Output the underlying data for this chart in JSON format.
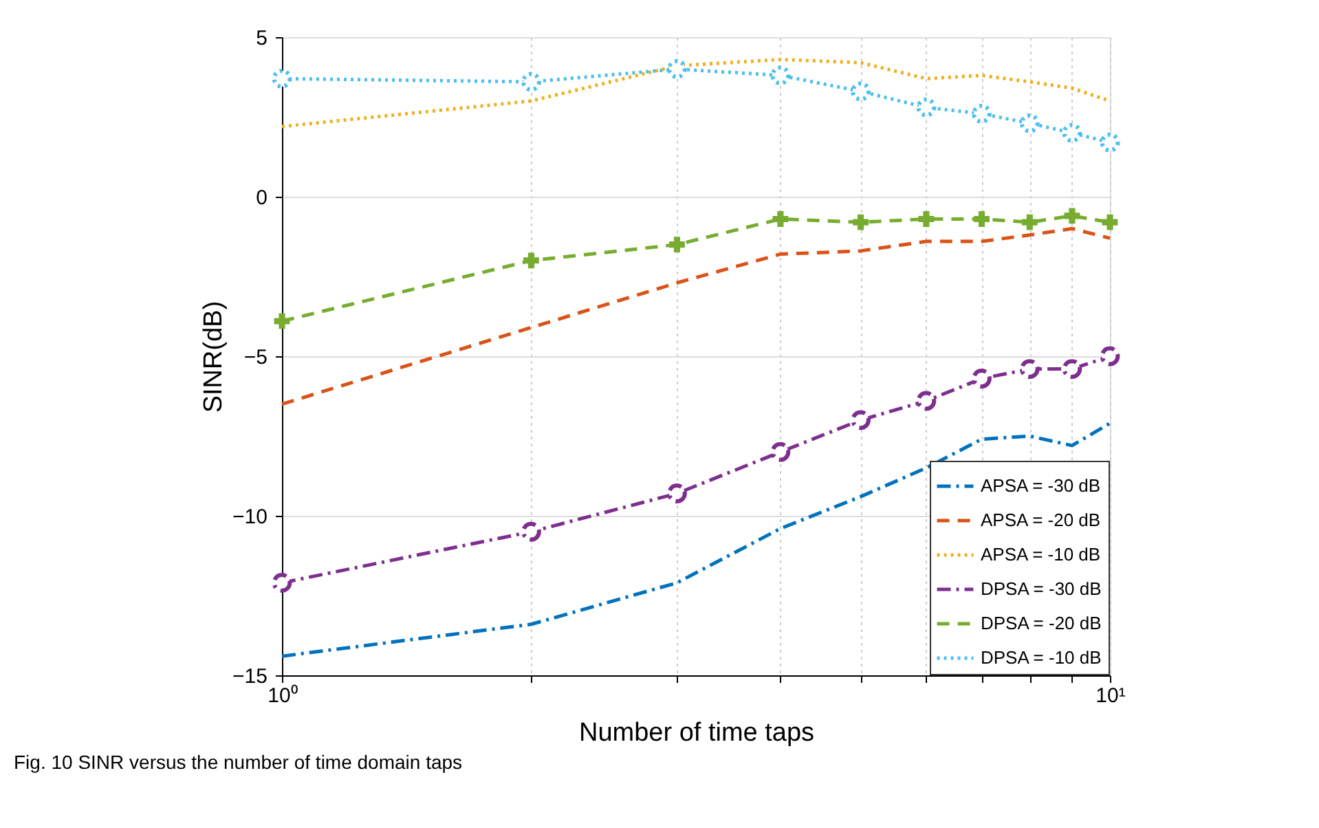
{
  "chart_data": {
    "type": "line",
    "xlabel": "Number of time taps",
    "ylabel": "SINR(dB)",
    "annotations": [
      "Fig. 10  SINR versus the number of time domain taps"
    ],
    "x": [
      1,
      2,
      3,
      4,
      5,
      6,
      7,
      8,
      9,
      10
    ],
    "log": "x",
    "xlim": [
      1,
      10
    ],
    "xticks": [
      {
        "value": 1,
        "label": "10⁰"
      },
      {
        "value": 2,
        "label": null
      },
      {
        "value": 3,
        "label": null
      },
      {
        "value": 4,
        "label": null
      },
      {
        "value": 5,
        "label": null
      },
      {
        "value": 6,
        "label": null
      },
      {
        "value": 7,
        "label": null
      },
      {
        "value": 8,
        "label": null
      },
      {
        "value": 9,
        "label": null
      },
      {
        "value": 10,
        "label": "10¹"
      }
    ],
    "ylim": [
      -15,
      5
    ],
    "yticks": [
      -15,
      -10,
      -5,
      0,
      5
    ],
    "grid": true,
    "legend": "bottom right",
    "series": [
      {
        "name": "APSA = -30 dB",
        "color": "#0072bd",
        "line_style": "dashdot",
        "marker": "none",
        "values": [
          -14.4,
          -13.4,
          -12.1,
          -10.4,
          -9.4,
          -8.5,
          -7.6,
          -7.5,
          -7.8,
          -7.1
        ]
      },
      {
        "name": "APSA = -20 dB",
        "color": "#d95319",
        "line_style": "dashed",
        "marker": "none",
        "values": [
          -6.5,
          -4.1,
          -2.7,
          -1.8,
          -1.7,
          -1.4,
          -1.4,
          -1.2,
          -1.0,
          -1.3
        ]
      },
      {
        "name": "APSA = -10 dB",
        "color": "#edb120",
        "line_style": "dotted",
        "marker": "none",
        "values": [
          2.2,
          3.0,
          4.1,
          4.3,
          4.2,
          3.7,
          3.8,
          3.6,
          3.4,
          3.0
        ]
      },
      {
        "name": "DPSA = -30 dB",
        "color": "#7e2f8e",
        "line_style": "dashdot",
        "marker": "circle",
        "values": [
          -12.1,
          -10.5,
          -9.3,
          -8.0,
          -7.0,
          -6.4,
          -5.7,
          -5.4,
          -5.4,
          -5.0
        ]
      },
      {
        "name": "DPSA = -20 dB",
        "color": "#77ac30",
        "line_style": "dashed",
        "marker": "cross",
        "values": [
          -3.9,
          -2.0,
          -1.5,
          -0.7,
          -0.8,
          -0.7,
          -0.7,
          -0.8,
          -0.6,
          -0.8
        ]
      },
      {
        "name": "DPSA = -10 dB",
        "color": "#4dbeee",
        "line_style": "dotted",
        "marker": "circle",
        "values": [
          3.7,
          3.6,
          4.0,
          3.8,
          3.3,
          2.8,
          2.6,
          2.3,
          2.0,
          1.7
        ]
      }
    ]
  }
}
